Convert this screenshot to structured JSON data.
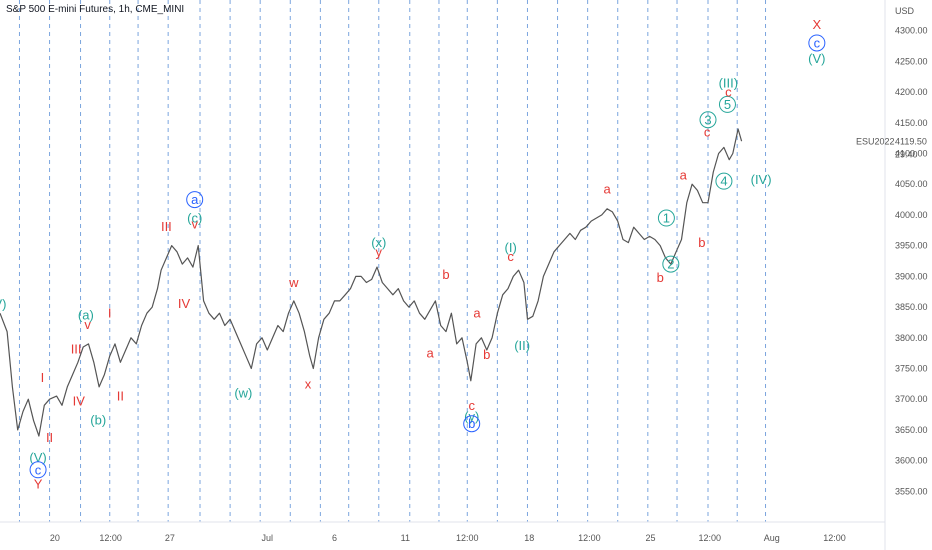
{
  "title": "S&P 500 E-mini Futures, 1h, CME_MINI",
  "chart_data": {
    "type": "line",
    "currency": "USD",
    "symbol": "ESU2022",
    "last_price": "4119.50",
    "countdown": "29:40",
    "ylim": [
      3500,
      4350
    ],
    "xlim": [
      0,
      100
    ],
    "y_ticks": [
      "3550.00",
      "3600.00",
      "3650.00",
      "3700.00",
      "3750.00",
      "3800.00",
      "3850.00",
      "3900.00",
      "3950.00",
      "4000.00",
      "4050.00",
      "4100.00",
      "4150.00",
      "4200.00",
      "4250.00",
      "4300.00"
    ],
    "x_ticks": [
      {
        "x": 6.2,
        "label": "20"
      },
      {
        "x": 12.5,
        "label": "12:00"
      },
      {
        "x": 19.2,
        "label": "27"
      },
      {
        "x": 30.2,
        "label": "Jul"
      },
      {
        "x": 37.8,
        "label": "6"
      },
      {
        "x": 45.8,
        "label": "11"
      },
      {
        "x": 52.8,
        "label": "12:00"
      },
      {
        "x": 59.8,
        "label": "18"
      },
      {
        "x": 66.6,
        "label": "12:00"
      },
      {
        "x": 73.5,
        "label": "25"
      },
      {
        "x": 80.2,
        "label": "12:00"
      },
      {
        "x": 87.2,
        "label": "Aug"
      },
      {
        "x": 94.3,
        "label": "12:00"
      }
    ],
    "vertical_guides": [
      2.2,
      5.6,
      9.1,
      12.4,
      15.6,
      19.0,
      22.6,
      26.0,
      29.4,
      32.8,
      36.2,
      39.4,
      42.8,
      46.3,
      49.6,
      52.8,
      56.2,
      59.6,
      63.0,
      66.4,
      69.8,
      73.2,
      76.5,
      80.0,
      83.3,
      86.5
    ],
    "series": [
      {
        "color": "#555555",
        "points": [
          [
            0,
            3840
          ],
          [
            0.8,
            3810
          ],
          [
            1.4,
            3720
          ],
          [
            2.0,
            3650
          ],
          [
            2.6,
            3680
          ],
          [
            3.2,
            3700
          ],
          [
            3.8,
            3665
          ],
          [
            4.4,
            3640
          ],
          [
            5.0,
            3690
          ],
          [
            5.6,
            3700
          ],
          [
            6.4,
            3705
          ],
          [
            7.0,
            3690
          ],
          [
            7.6,
            3720
          ],
          [
            8.2,
            3740
          ],
          [
            8.8,
            3760
          ],
          [
            9.4,
            3785
          ],
          [
            10.0,
            3790
          ],
          [
            10.6,
            3760
          ],
          [
            11.2,
            3720
          ],
          [
            11.8,
            3740
          ],
          [
            12.4,
            3770
          ],
          [
            13.0,
            3790
          ],
          [
            13.6,
            3760
          ],
          [
            14.2,
            3780
          ],
          [
            14.8,
            3800
          ],
          [
            15.4,
            3790
          ],
          [
            16.0,
            3820
          ],
          [
            16.6,
            3840
          ],
          [
            17.2,
            3850
          ],
          [
            17.8,
            3880
          ],
          [
            18.2,
            3910
          ],
          [
            18.8,
            3930
          ],
          [
            19.4,
            3950
          ],
          [
            20.0,
            3940
          ],
          [
            20.6,
            3920
          ],
          [
            21.2,
            3930
          ],
          [
            21.8,
            3915
          ],
          [
            22.4,
            3950
          ],
          [
            23.0,
            3860
          ],
          [
            23.6,
            3840
          ],
          [
            24.2,
            3830
          ],
          [
            24.8,
            3840
          ],
          [
            25.4,
            3820
          ],
          [
            26.0,
            3830
          ],
          [
            26.6,
            3810
          ],
          [
            27.2,
            3790
          ],
          [
            27.8,
            3770
          ],
          [
            28.4,
            3750
          ],
          [
            29.0,
            3790
          ],
          [
            29.6,
            3800
          ],
          [
            30.2,
            3780
          ],
          [
            30.8,
            3800
          ],
          [
            31.4,
            3820
          ],
          [
            32.0,
            3810
          ],
          [
            32.6,
            3840
          ],
          [
            33.2,
            3860
          ],
          [
            33.8,
            3840
          ],
          [
            34.4,
            3810
          ],
          [
            35.0,
            3770
          ],
          [
            35.4,
            3750
          ],
          [
            36.0,
            3800
          ],
          [
            36.6,
            3830
          ],
          [
            37.2,
            3840
          ],
          [
            37.8,
            3860
          ],
          [
            38.4,
            3860
          ],
          [
            39.0,
            3870
          ],
          [
            39.6,
            3880
          ],
          [
            40.2,
            3900
          ],
          [
            40.8,
            3900
          ],
          [
            41.4,
            3890
          ],
          [
            42.0,
            3895
          ],
          [
            42.6,
            3915
          ],
          [
            43.2,
            3890
          ],
          [
            43.8,
            3880
          ],
          [
            44.4,
            3870
          ],
          [
            45.0,
            3880
          ],
          [
            45.6,
            3860
          ],
          [
            46.2,
            3850
          ],
          [
            46.8,
            3860
          ],
          [
            47.4,
            3840
          ],
          [
            48.0,
            3830
          ],
          [
            48.6,
            3845
          ],
          [
            49.2,
            3860
          ],
          [
            49.8,
            3820
          ],
          [
            50.4,
            3810
          ],
          [
            51.0,
            3840
          ],
          [
            51.6,
            3790
          ],
          [
            52.2,
            3800
          ],
          [
            52.8,
            3760
          ],
          [
            53.2,
            3730
          ],
          [
            53.8,
            3790
          ],
          [
            54.4,
            3800
          ],
          [
            55.0,
            3780
          ],
          [
            55.6,
            3800
          ],
          [
            56.2,
            3840
          ],
          [
            56.8,
            3870
          ],
          [
            57.4,
            3880
          ],
          [
            58.0,
            3900
          ],
          [
            58.6,
            3910
          ],
          [
            59.2,
            3890
          ],
          [
            59.6,
            3830
          ],
          [
            60.2,
            3835
          ],
          [
            60.8,
            3860
          ],
          [
            61.4,
            3900
          ],
          [
            62.0,
            3920
          ],
          [
            62.6,
            3940
          ],
          [
            63.2,
            3950
          ],
          [
            63.8,
            3960
          ],
          [
            64.4,
            3970
          ],
          [
            65.0,
            3960
          ],
          [
            65.6,
            3975
          ],
          [
            66.2,
            3980
          ],
          [
            66.8,
            3990
          ],
          [
            67.4,
            3995
          ],
          [
            68.0,
            4000
          ],
          [
            68.6,
            4010
          ],
          [
            69.2,
            4005
          ],
          [
            69.8,
            3990
          ],
          [
            70.4,
            3960
          ],
          [
            71.0,
            3955
          ],
          [
            71.6,
            3980
          ],
          [
            72.2,
            3970
          ],
          [
            72.8,
            3960
          ],
          [
            73.4,
            3965
          ],
          [
            74.0,
            3960
          ],
          [
            74.6,
            3950
          ],
          [
            75.2,
            3930
          ],
          [
            75.8,
            3920
          ],
          [
            76.4,
            3940
          ],
          [
            77.0,
            3960
          ],
          [
            77.6,
            4020
          ],
          [
            78.2,
            4050
          ],
          [
            78.8,
            4040
          ],
          [
            79.4,
            4020
          ],
          [
            80.0,
            4020
          ],
          [
            80.6,
            4070
          ],
          [
            81.2,
            4100
          ],
          [
            81.8,
            4110
          ],
          [
            82.4,
            4090
          ],
          [
            82.8,
            4100
          ],
          [
            83.4,
            4140
          ],
          [
            83.8,
            4120
          ]
        ]
      }
    ],
    "annotations": [
      {
        "x": 0.0,
        "y": 3855,
        "text": "V)",
        "color": "#26a69a"
      },
      {
        "x": 4.8,
        "y": 3735,
        "text": "I",
        "color": "#e53935"
      },
      {
        "x": 5.6,
        "y": 3638,
        "text": "II",
        "color": "#e53935"
      },
      {
        "x": 4.3,
        "y": 3605,
        "text": "(V)",
        "color": "#26a69a"
      },
      {
        "x": 4.3,
        "y": 3585,
        "text": "c",
        "color": "#2962ff",
        "circle": true
      },
      {
        "x": 4.3,
        "y": 3562,
        "text": "Y",
        "color": "#e53935"
      },
      {
        "x": 8.6,
        "y": 3782,
        "text": "III",
        "color": "#e53935"
      },
      {
        "x": 8.9,
        "y": 3697,
        "text": "IV",
        "color": "#e53935"
      },
      {
        "x": 9.7,
        "y": 3837,
        "text": "(a)",
        "color": "#26a69a"
      },
      {
        "x": 9.9,
        "y": 3822,
        "text": "v",
        "color": "#e53935"
      },
      {
        "x": 11.1,
        "y": 3666,
        "text": "(b)",
        "color": "#26a69a"
      },
      {
        "x": 12.4,
        "y": 3840,
        "text": "I",
        "color": "#e53935"
      },
      {
        "x": 13.6,
        "y": 3705,
        "text": "II",
        "color": "#e53935"
      },
      {
        "x": 18.8,
        "y": 3981,
        "text": "III",
        "color": "#e53935"
      },
      {
        "x": 20.8,
        "y": 3856,
        "text": "IV",
        "color": "#e53935"
      },
      {
        "x": 22.0,
        "y": 4025,
        "text": "a",
        "color": "#2962ff",
        "circle": true
      },
      {
        "x": 22.0,
        "y": 3995,
        "text": "(c)",
        "color": "#26a69a"
      },
      {
        "x": 22.0,
        "y": 3985,
        "text": "v",
        "color": "#e53935"
      },
      {
        "x": 27.5,
        "y": 3710,
        "text": "(w)",
        "color": "#26a69a"
      },
      {
        "x": 33.2,
        "y": 3890,
        "text": "w",
        "color": "#e53935"
      },
      {
        "x": 34.8,
        "y": 3725,
        "text": "x",
        "color": "#e53935"
      },
      {
        "x": 42.8,
        "y": 3955,
        "text": "(x)",
        "color": "#26a69a"
      },
      {
        "x": 42.8,
        "y": 3940,
        "text": "y",
        "color": "#e53935"
      },
      {
        "x": 48.6,
        "y": 3775,
        "text": "a",
        "color": "#e53935"
      },
      {
        "x": 50.4,
        "y": 3903,
        "text": "b",
        "color": "#e53935"
      },
      {
        "x": 53.3,
        "y": 3690,
        "text": "c",
        "color": "#e53935"
      },
      {
        "x": 53.3,
        "y": 3672,
        "text": "(y)",
        "color": "#26a69a"
      },
      {
        "x": 53.3,
        "y": 3660,
        "text": "b",
        "color": "#2962ff",
        "circle": true
      },
      {
        "x": 53.9,
        "y": 3840,
        "text": "a",
        "color": "#e53935"
      },
      {
        "x": 55.0,
        "y": 3773,
        "text": "b",
        "color": "#e53935"
      },
      {
        "x": 57.7,
        "y": 3947,
        "text": "(I)",
        "color": "#26a69a"
      },
      {
        "x": 57.7,
        "y": 3932,
        "text": "c",
        "color": "#e53935"
      },
      {
        "x": 59.0,
        "y": 3787,
        "text": "(II)",
        "color": "#26a69a"
      },
      {
        "x": 68.6,
        "y": 4042,
        "text": "a",
        "color": "#e53935"
      },
      {
        "x": 74.6,
        "y": 3898,
        "text": "b",
        "color": "#e53935"
      },
      {
        "x": 75.3,
        "y": 3995,
        "text": "1",
        "color": "#26a69a",
        "circle": true
      },
      {
        "x": 75.8,
        "y": 3920,
        "text": "2",
        "color": "#26a69a",
        "circle": true
      },
      {
        "x": 77.2,
        "y": 4065,
        "text": "a",
        "color": "#e53935"
      },
      {
        "x": 79.3,
        "y": 3955,
        "text": "b",
        "color": "#e53935"
      },
      {
        "x": 79.9,
        "y": 4135,
        "text": "c",
        "color": "#e53935"
      },
      {
        "x": 80.0,
        "y": 4155,
        "text": "3",
        "color": "#26a69a",
        "circle": true
      },
      {
        "x": 82.2,
        "y": 4180,
        "text": "5",
        "color": "#26a69a",
        "circle": true
      },
      {
        "x": 82.3,
        "y": 4200,
        "text": "c",
        "color": "#e53935"
      },
      {
        "x": 82.3,
        "y": 4215,
        "text": "(III)",
        "color": "#26a69a"
      },
      {
        "x": 81.8,
        "y": 4055,
        "text": "4",
        "color": "#26a69a",
        "circle": true
      },
      {
        "x": 86.0,
        "y": 4058,
        "text": "(IV)",
        "color": "#26a69a"
      },
      {
        "x": 92.3,
        "y": 4310,
        "text": "X",
        "color": "#e53935"
      },
      {
        "x": 92.3,
        "y": 4280,
        "text": "c",
        "color": "#2962ff",
        "circle": true
      },
      {
        "x": 92.3,
        "y": 4255,
        "text": "(V)",
        "color": "#26a69a"
      }
    ]
  }
}
